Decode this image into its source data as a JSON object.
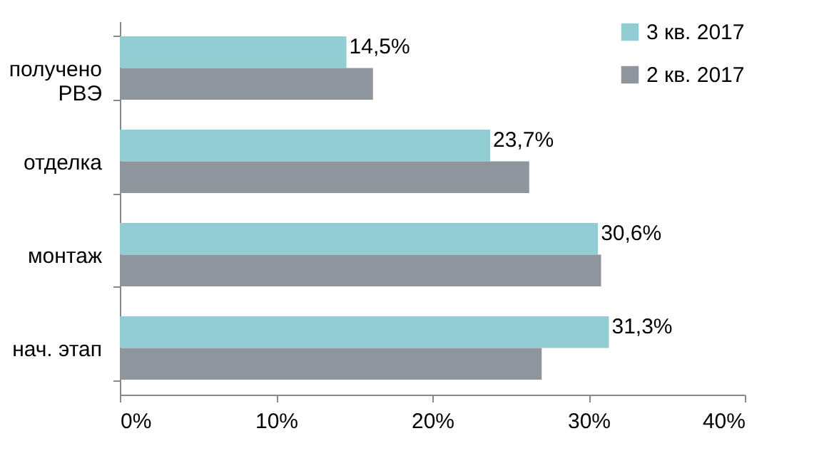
{
  "chart_data": {
    "type": "bar",
    "orientation": "horizontal",
    "categories": [
      "получено РВЭ",
      "отделка",
      "монтаж",
      "нач. этап"
    ],
    "series": [
      {
        "name": "3 кв. 2017",
        "color": "#92cdd3",
        "values": [
          14.5,
          23.7,
          30.6,
          31.3
        ],
        "value_labels": [
          "14,5%",
          "23,7%",
          "30,6%",
          "31,3%"
        ]
      },
      {
        "name": "2 кв. 2017",
        "color": "#8e959d",
        "values": [
          16.2,
          26.2,
          30.8,
          27.0
        ]
      }
    ],
    "xlim": [
      0,
      40
    ],
    "xticks": [
      {
        "value": 0,
        "label": "0%"
      },
      {
        "value": 10,
        "label": "10%"
      },
      {
        "value": 20,
        "label": "20%"
      },
      {
        "value": 30,
        "label": "30%"
      },
      {
        "value": 40,
        "label": "40%"
      }
    ],
    "grid": false,
    "legend": "top right"
  }
}
